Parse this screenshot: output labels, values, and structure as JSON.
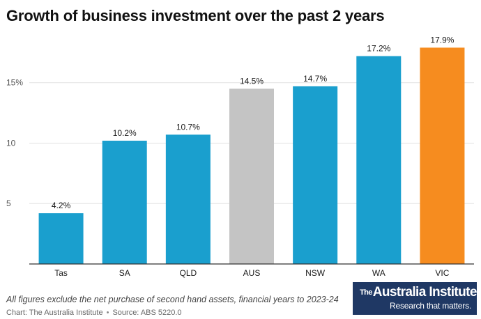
{
  "title": "Growth of business investment over the past 2 years",
  "footnote": "All figures exclude the net purchase of second hand assets, financial years to 2023-24",
  "credit_chart": "Chart: The Australia Institute",
  "credit_source": "Source: ABS 5220.0",
  "logo": {
    "the": "The",
    "name": "Australia Institute",
    "tagline": "Research that matters."
  },
  "colors": {
    "default": "#1a9fce",
    "aus": "#c4c4c4",
    "vic": "#f68c1f",
    "grid": "#e2e2e2",
    "axis": "#333333",
    "logo_bg": "#1f3864"
  },
  "chart_data": {
    "type": "bar",
    "categories": [
      "Tas",
      "SA",
      "QLD",
      "AUS",
      "NSW",
      "WA",
      "VIC"
    ],
    "values": [
      4.2,
      10.2,
      10.7,
      14.5,
      14.7,
      17.2,
      17.9
    ],
    "data_labels": [
      "4.2%",
      "10.2%",
      "10.7%",
      "14.5%",
      "14.7%",
      "17.2%",
      "17.9%"
    ],
    "bar_colors": [
      "#1a9fce",
      "#1a9fce",
      "#1a9fce",
      "#c4c4c4",
      "#1a9fce",
      "#1a9fce",
      "#f68c1f"
    ],
    "yticks": [
      5,
      10,
      15
    ],
    "ytick_labels": [
      "5",
      "10",
      "15%"
    ],
    "ylim": [
      0,
      18.5
    ],
    "grid": true,
    "title": "Growth of business investment over the past 2 years",
    "xlabel": "",
    "ylabel": ""
  }
}
